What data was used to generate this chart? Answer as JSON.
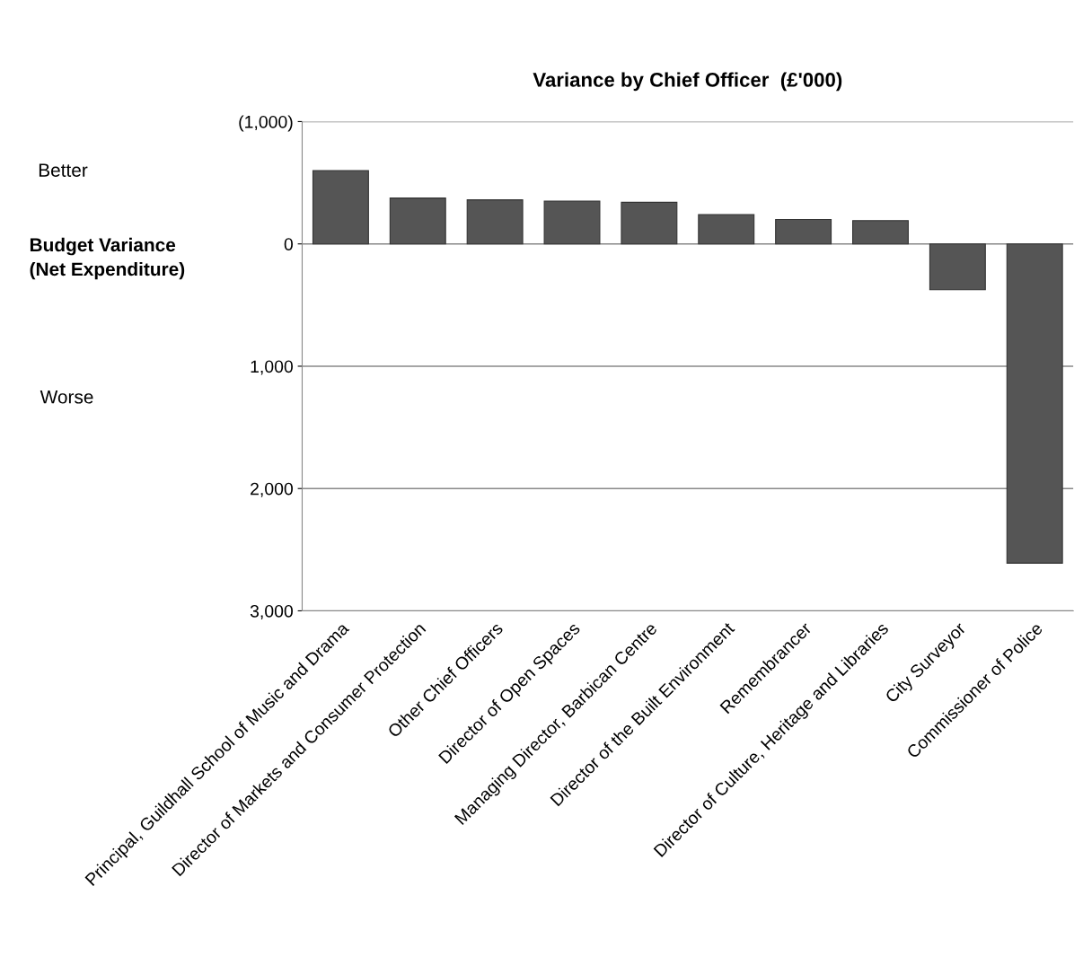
{
  "chart_data": {
    "type": "bar",
    "title": "Variance by Chief Officer  (£'000)",
    "ylabel": "Budget Variance\n(Net Expenditure)",
    "annotations": [
      "Better",
      "Worse"
    ],
    "categories": [
      "Principal, Guildhall School of Music and Drama",
      "Director of Markets and Consumer Protection",
      "Other Chief Officers",
      "Director of Open Spaces",
      "Managing Director, Barbican Centre",
      "Director of the Built Environment",
      "Remembrancer",
      "Director of Culture, Heritage and Libraries",
      "City Surveyor",
      "Commissioner of Police"
    ],
    "values": [
      -600,
      -375,
      -360,
      -350,
      -340,
      -240,
      -200,
      -190,
      375,
      2610
    ],
    "color": "#555555",
    "ylim": [
      3000,
      -1000
    ],
    "yticks": [
      {
        "value": -1000,
        "label": "(1,000)"
      },
      0,
      {
        "value": 1000,
        "label": "1,000"
      },
      {
        "value": 2000,
        "label": "2,000"
      },
      {
        "value": 3000,
        "label": "3,000"
      }
    ],
    "grid": "y",
    "legend": false
  }
}
